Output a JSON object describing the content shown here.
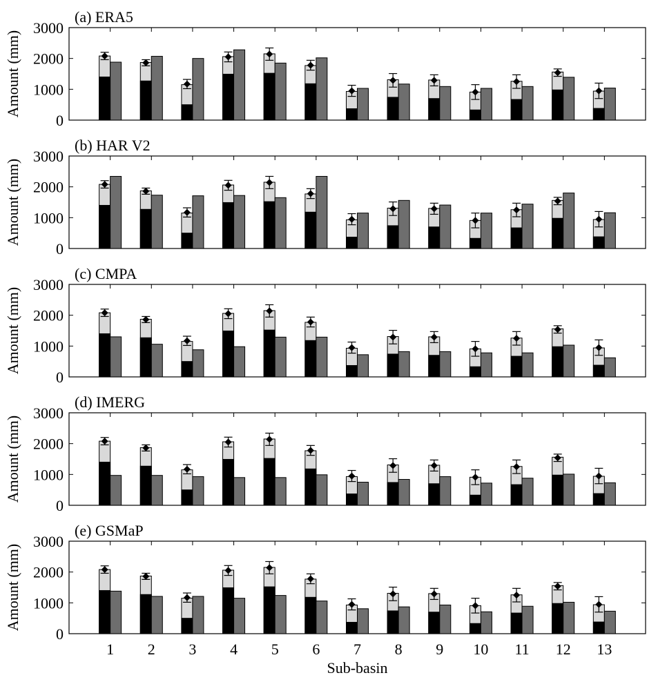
{
  "figure": {
    "xlabel": "Sub-basin",
    "ylabel": "Amount (mm)",
    "colors": {
      "black_part": "#000000",
      "light_part": "#d9d9d9",
      "product_bar": "#6e6e6e",
      "axis": "#000000"
    }
  },
  "chart_data": [
    {
      "type": "bar",
      "title": "(a) ERA5",
      "categories": [
        "1",
        "2",
        "3",
        "4",
        "5",
        "6",
        "7",
        "8",
        "9",
        "10",
        "11",
        "12",
        "13"
      ],
      "ylim": [
        0,
        3000
      ],
      "yticks": [
        0,
        1000,
        2000,
        3000
      ],
      "series": [
        {
          "values": [
            1400,
            1270,
            500,
            1490,
            1520,
            1180,
            370,
            740,
            700,
            330,
            670,
            980,
            380
          ]
        },
        {
          "values": [
            2080,
            1870,
            1150,
            2060,
            2150,
            1770,
            930,
            1310,
            1300,
            910,
            1260,
            1560,
            940
          ]
        },
        {
          "values": [
            2080,
            1860,
            1170,
            2050,
            2140,
            1780,
            950,
            1290,
            1290,
            910,
            1250,
            1540,
            950
          ],
          "errors": [
            120,
            100,
            150,
            160,
            200,
            160,
            180,
            220,
            180,
            240,
            220,
            120,
            250
          ]
        },
        {
          "values": [
            1880,
            2070,
            2000,
            2280,
            1850,
            2020,
            1030,
            1170,
            1090,
            1030,
            1090,
            1390,
            1040
          ]
        }
      ]
    },
    {
      "type": "bar",
      "title": "(b) HAR V2",
      "categories": [
        "1",
        "2",
        "3",
        "4",
        "5",
        "6",
        "7",
        "8",
        "9",
        "10",
        "11",
        "12",
        "13"
      ],
      "ylim": [
        0,
        3000
      ],
      "yticks": [
        0,
        1000,
        2000,
        3000
      ],
      "series": [
        {
          "values": [
            1400,
            1270,
            500,
            1490,
            1520,
            1180,
            370,
            740,
            700,
            330,
            670,
            980,
            380
          ]
        },
        {
          "values": [
            2080,
            1870,
            1150,
            2060,
            2150,
            1770,
            930,
            1310,
            1300,
            910,
            1260,
            1560,
            940
          ]
        },
        {
          "values": [
            2080,
            1860,
            1170,
            2050,
            2140,
            1780,
            950,
            1290,
            1290,
            910,
            1250,
            1540,
            950
          ],
          "errors": [
            120,
            100,
            150,
            160,
            200,
            160,
            180,
            220,
            180,
            240,
            220,
            120,
            250
          ]
        },
        {
          "values": [
            2340,
            1730,
            1710,
            1720,
            1650,
            2340,
            1150,
            1560,
            1410,
            1150,
            1440,
            1800,
            1160
          ]
        }
      ]
    },
    {
      "type": "bar",
      "title": "(c) CMPA",
      "categories": [
        "1",
        "2",
        "3",
        "4",
        "5",
        "6",
        "7",
        "8",
        "9",
        "10",
        "11",
        "12",
        "13"
      ],
      "ylim": [
        0,
        3000
      ],
      "yticks": [
        0,
        1000,
        2000,
        3000
      ],
      "series": [
        {
          "values": [
            1400,
            1270,
            500,
            1490,
            1520,
            1180,
            370,
            740,
            700,
            330,
            670,
            980,
            380
          ]
        },
        {
          "values": [
            2080,
            1870,
            1150,
            2060,
            2150,
            1770,
            930,
            1310,
            1300,
            910,
            1260,
            1560,
            940
          ]
        },
        {
          "values": [
            2080,
            1860,
            1170,
            2050,
            2140,
            1780,
            950,
            1290,
            1290,
            910,
            1250,
            1540,
            950
          ],
          "errors": [
            120,
            100,
            150,
            160,
            200,
            160,
            180,
            220,
            180,
            240,
            220,
            120,
            250
          ]
        },
        {
          "values": [
            1300,
            1060,
            880,
            980,
            1290,
            1290,
            720,
            820,
            820,
            780,
            780,
            1030,
            620
          ]
        }
      ]
    },
    {
      "type": "bar",
      "title": "(d) IMERG",
      "categories": [
        "1",
        "2",
        "3",
        "4",
        "5",
        "6",
        "7",
        "8",
        "9",
        "10",
        "11",
        "12",
        "13"
      ],
      "ylim": [
        0,
        3000
      ],
      "yticks": [
        0,
        1000,
        2000,
        3000
      ],
      "series": [
        {
          "values": [
            1400,
            1270,
            500,
            1490,
            1520,
            1180,
            370,
            740,
            700,
            330,
            670,
            980,
            380
          ]
        },
        {
          "values": [
            2080,
            1870,
            1150,
            2060,
            2150,
            1770,
            930,
            1310,
            1300,
            910,
            1260,
            1560,
            940
          ]
        },
        {
          "values": [
            2080,
            1860,
            1170,
            2050,
            2140,
            1780,
            950,
            1290,
            1290,
            910,
            1250,
            1540,
            950
          ],
          "errors": [
            120,
            100,
            150,
            160,
            200,
            160,
            180,
            220,
            180,
            240,
            220,
            120,
            250
          ]
        },
        {
          "values": [
            970,
            970,
            930,
            900,
            900,
            990,
            750,
            840,
            930,
            720,
            880,
            1010,
            730
          ]
        }
      ]
    },
    {
      "type": "bar",
      "title": "(e) GSMaP",
      "categories": [
        "1",
        "2",
        "3",
        "4",
        "5",
        "6",
        "7",
        "8",
        "9",
        "10",
        "11",
        "12",
        "13"
      ],
      "ylim": [
        0,
        3000
      ],
      "yticks": [
        0,
        1000,
        2000,
        3000
      ],
      "series": [
        {
          "values": [
            1400,
            1270,
            500,
            1490,
            1520,
            1180,
            370,
            740,
            700,
            330,
            670,
            980,
            380
          ]
        },
        {
          "values": [
            2080,
            1870,
            1150,
            2060,
            2150,
            1770,
            930,
            1310,
            1300,
            910,
            1260,
            1560,
            940
          ]
        },
        {
          "values": [
            2080,
            1860,
            1170,
            2050,
            2140,
            1780,
            950,
            1290,
            1290,
            910,
            1250,
            1540,
            950
          ],
          "errors": [
            120,
            100,
            150,
            160,
            200,
            160,
            180,
            220,
            180,
            240,
            220,
            120,
            250
          ]
        },
        {
          "values": [
            1380,
            1210,
            1210,
            1150,
            1240,
            1060,
            810,
            870,
            930,
            710,
            890,
            1020,
            730
          ]
        }
      ]
    }
  ]
}
